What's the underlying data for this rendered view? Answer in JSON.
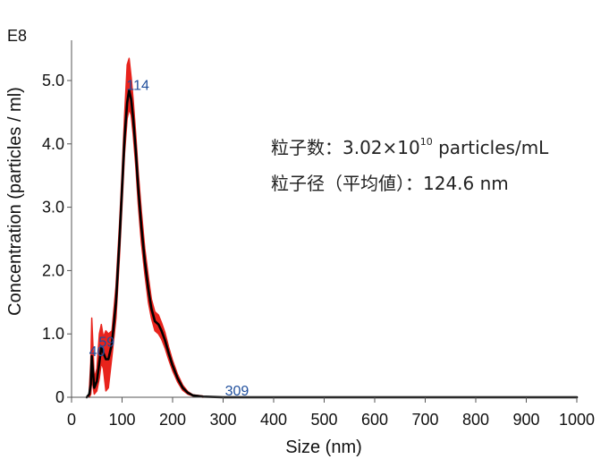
{
  "chart_data": {
    "type": "line",
    "title": "",
    "xlabel": "Size (nm)",
    "ylabel": "Concentration (particles / ml)",
    "y_multiplier_label": "E8",
    "xlim": [
      0,
      1000
    ],
    "ylim": [
      0,
      5.5
    ],
    "x_ticks": [
      0,
      100,
      200,
      300,
      400,
      500,
      600,
      700,
      800,
      900,
      1000
    ],
    "y_ticks": [
      {
        "value": 0,
        "label": "0"
      },
      {
        "value": 1.0,
        "label": "1.0"
      },
      {
        "value": 2.0,
        "label": "2.0"
      },
      {
        "value": 3.0,
        "label": "3.0"
      },
      {
        "value": 4.0,
        "label": "4.0"
      },
      {
        "value": 5.0,
        "label": "5.0"
      }
    ],
    "grid": false,
    "series": [
      {
        "color": "#000000",
        "x": [
          30,
          35,
          38,
          40,
          42,
          45,
          50,
          55,
          59,
          63,
          68,
          73,
          80,
          88,
          95,
          100,
          105,
          110,
          114,
          118,
          122,
          127,
          132,
          138,
          145,
          152,
          158,
          165,
          172,
          178,
          185,
          192,
          200,
          210,
          220,
          230,
          240,
          260,
          300,
          350,
          400,
          500,
          600,
          700,
          800,
          900,
          1000
        ],
        "y": [
          0.0,
          0.05,
          0.2,
          0.65,
          0.45,
          0.15,
          0.25,
          0.55,
          0.8,
          0.7,
          0.6,
          0.6,
          0.85,
          1.5,
          2.5,
          3.3,
          4.1,
          4.65,
          4.85,
          4.7,
          4.4,
          3.9,
          3.3,
          2.7,
          2.15,
          1.7,
          1.4,
          1.2,
          1.15,
          1.05,
          0.9,
          0.7,
          0.5,
          0.3,
          0.15,
          0.07,
          0.03,
          0.01,
          0.0,
          0.0,
          0.0,
          0.0,
          0.0,
          0.0,
          0.0,
          0.0,
          0.0
        ]
      }
    ],
    "error_band": {
      "color": "#e8231c",
      "x": [
        35,
        38,
        40,
        42,
        45,
        50,
        55,
        59,
        63,
        68,
        73,
        80,
        88,
        95,
        100,
        105,
        110,
        114,
        118,
        122,
        127,
        132,
        138,
        145,
        152,
        158,
        165,
        172,
        178,
        185,
        192,
        200,
        210,
        220,
        230,
        240,
        260
      ],
      "lower": [
        0.0,
        0.05,
        0.3,
        0.2,
        0.05,
        0.1,
        0.3,
        0.55,
        0.45,
        0.1,
        0.15,
        0.65,
        1.25,
        2.25,
        3.05,
        3.85,
        4.4,
        4.55,
        4.45,
        4.15,
        3.65,
        3.05,
        2.45,
        1.95,
        1.5,
        1.25,
        1.05,
        1.0,
        0.92,
        0.78,
        0.6,
        0.42,
        0.24,
        0.11,
        0.05,
        0.02,
        0.0
      ],
      "upper": [
        0.1,
        0.55,
        1.25,
        0.9,
        0.3,
        0.45,
        1.0,
        1.15,
        0.95,
        1.05,
        1.0,
        1.05,
        1.75,
        2.75,
        3.55,
        4.45,
        5.25,
        5.35,
        5.05,
        4.7,
        4.15,
        3.55,
        2.95,
        2.35,
        1.9,
        1.55,
        1.35,
        1.3,
        1.18,
        1.02,
        0.8,
        0.58,
        0.36,
        0.19,
        0.09,
        0.04,
        0.02
      ]
    },
    "peak_labels": [
      {
        "x": 40,
        "y": 0.65,
        "label": "40"
      },
      {
        "x": 59,
        "y": 0.8,
        "label": "59"
      },
      {
        "x": 114,
        "y": 4.85,
        "label": "114"
      },
      {
        "x": 309,
        "y": 0.0,
        "label": "309"
      }
    ]
  },
  "annotations": {
    "line1_prefix": "粒子数：3.02×10",
    "line1_sup": "10",
    "line1_suffix": " particles/mL",
    "line2": "粒子径（平均値）：124.6 nm"
  }
}
